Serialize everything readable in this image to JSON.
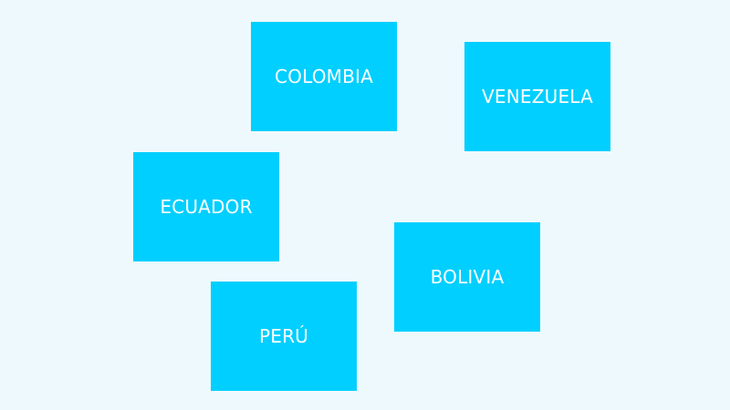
{
  "background_color": "#eef9fd",
  "card_color": "#00cfff",
  "cards": [
    {
      "label": "COLOMBIA"
    },
    {
      "label": "VENEZUELA"
    },
    {
      "label": "ECUADOR"
    },
    {
      "label": "BOLIVIA"
    },
    {
      "label": "PERÚ"
    }
  ]
}
